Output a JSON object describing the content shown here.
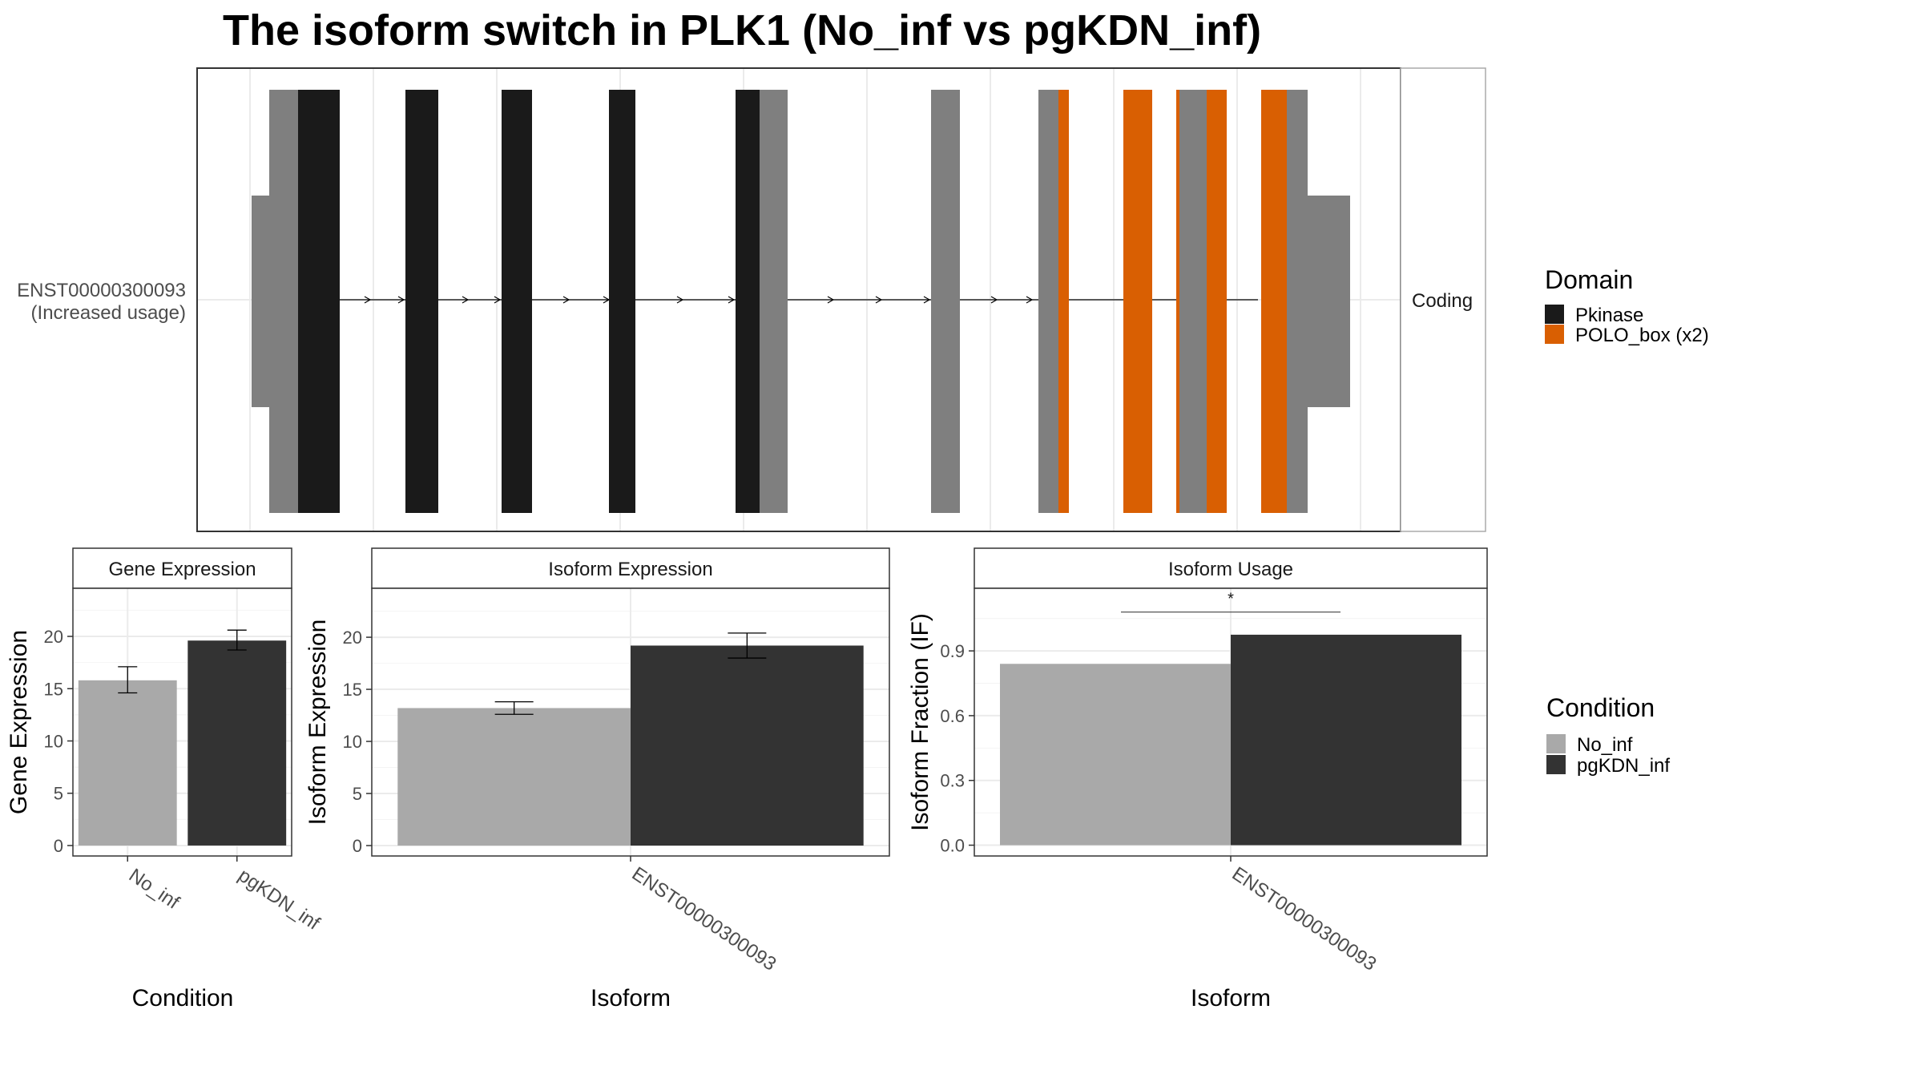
{
  "title": "The isoform switch in PLK1 (No_inf vs pgKDN_inf)",
  "colors": {
    "pkinase": "#1a1a1a",
    "polo_box": "#d95f02",
    "non_domain": "#7f7f7f",
    "no_inf": "#a9a9a9",
    "pgkdn_inf": "#333333"
  },
  "transcript_panel": {
    "isoform_label": "ENST00000300093",
    "usage_label": "(Increased usage)",
    "strip_label": "Coding"
  },
  "domain_legend": {
    "title": "Domain",
    "items": [
      {
        "label": "Pkinase",
        "color": "#1a1a1a"
      },
      {
        "label": "POLO_box (x2)",
        "color": "#d95f02"
      }
    ]
  },
  "condition_legend": {
    "title": "Condition",
    "items": [
      {
        "label": "No_inf",
        "color": "#a9a9a9"
      },
      {
        "label": "pgKDN_inf",
        "color": "#333333"
      }
    ]
  },
  "chart_data": [
    {
      "type": "bar",
      "title": "Gene Expression",
      "xlabel": "Condition",
      "ylabel": "Gene Expression",
      "categories": [
        "No_inf",
        "pgKDN_inf"
      ],
      "values": [
        15.8,
        19.6
      ],
      "error_low": [
        14.6,
        18.7
      ],
      "error_high": [
        17.1,
        20.6
      ],
      "ylim": [
        -1.0,
        24.6
      ],
      "yticks": [
        0,
        5,
        10,
        15,
        20
      ],
      "grid": true
    },
    {
      "type": "bar",
      "title": "Isoform Expression",
      "xlabel": "Isoform",
      "ylabel": "Isoform Expression",
      "categories": [
        "ENST00000300093"
      ],
      "series": [
        {
          "name": "No_inf",
          "values": [
            13.2
          ],
          "error_low": [
            12.6
          ],
          "error_high": [
            13.8
          ]
        },
        {
          "name": "pgKDN_inf",
          "values": [
            19.2
          ],
          "error_low": [
            18.0
          ],
          "error_high": [
            20.4
          ]
        }
      ],
      "ylim": [
        -1.0,
        24.7
      ],
      "yticks": [
        0,
        5,
        10,
        15,
        20
      ],
      "grid": true
    },
    {
      "type": "bar",
      "title": "Isoform Usage",
      "xlabel": "Isoform",
      "ylabel": "Isoform Fraction (IF)",
      "categories": [
        "ENST00000300093"
      ],
      "series": [
        {
          "name": "No_inf",
          "values": [
            0.84
          ]
        },
        {
          "name": "pgKDN_inf",
          "values": [
            0.975
          ]
        }
      ],
      "significance": "*",
      "ylim": [
        -0.05,
        1.19
      ],
      "yticks": [
        0.0,
        0.3,
        0.6,
        0.9
      ],
      "ytick_labels": [
        "0.0",
        "0.3",
        "0.6",
        "0.9"
      ],
      "grid": true
    }
  ]
}
